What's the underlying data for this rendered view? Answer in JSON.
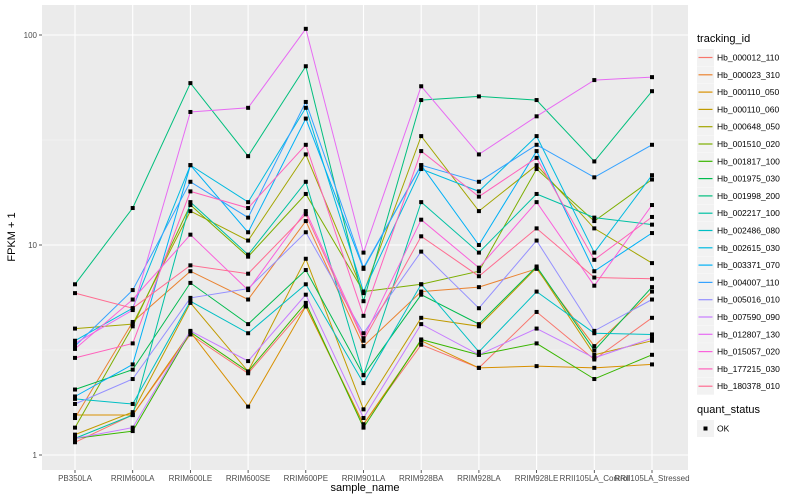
{
  "chart_data": {
    "type": "line",
    "title": "",
    "xlabel": "sample_name",
    "ylabel": "FPKM + 1",
    "yscale": "log10",
    "ylim": [
      0.9,
      130
    ],
    "yticks": [
      1,
      10,
      100
    ],
    "ytick_labels": [
      "1",
      "10",
      "100"
    ],
    "grid": true,
    "legend_position": "right",
    "categories": [
      "PB350LA",
      "RRIM600LA",
      "RRIM600LE",
      "RRIM600SE",
      "RRIM600PE",
      "RRIM901LA",
      "RRIM928BA",
      "RRIM928LA",
      "RRIM928LE",
      "RRII105LA_Control",
      "RRII105LA_Stressed"
    ],
    "color_legend_title": "tracking_id",
    "shape_legend_title": "quant_status",
    "shape_legend_items": [
      {
        "label": "OK",
        "marker": "square"
      }
    ],
    "series": [
      {
        "name": "Hb_000012_110",
        "color": "#F8766D",
        "values": [
          1.15,
          1.55,
          3.75,
          2.45,
          5.1,
          1.4,
          3.35,
          2.6,
          4.8,
          2.85,
          4.5
        ]
      },
      {
        "name": "Hb_000023_310",
        "color": "#EA8331",
        "values": [
          1.5,
          4.3,
          7.5,
          5.5,
          13.0,
          3.3,
          6.0,
          6.3,
          7.7,
          3.3,
          6.0
        ]
      },
      {
        "name": "Hb_000110_050",
        "color": "#D89000",
        "values": [
          1.55,
          1.55,
          3.85,
          1.7,
          5.1,
          1.4,
          3.5,
          2.6,
          2.65,
          2.6,
          2.7
        ]
      },
      {
        "name": "Hb_000110_060",
        "color": "#C09B00",
        "values": [
          1.25,
          1.6,
          5.3,
          2.5,
          8.6,
          1.65,
          4.5,
          4.1,
          7.8,
          3.0,
          3.5
        ]
      },
      {
        "name": "Hb_000648_050",
        "color": "#A3A500",
        "values": [
          4.0,
          4.2,
          14.5,
          10.5,
          27.0,
          5.9,
          33.0,
          14.5,
          24.0,
          12.0,
          8.2
        ]
      },
      {
        "name": "Hb_001510_020",
        "color": "#7CAE00",
        "values": [
          1.35,
          4.1,
          15.5,
          8.8,
          17.5,
          6.0,
          6.5,
          7.5,
          23.0,
          13.0,
          20.5
        ]
      },
      {
        "name": "Hb_001817_100",
        "color": "#39B600",
        "values": [
          1.2,
          1.3,
          3.85,
          2.5,
          5.3,
          1.35,
          3.55,
          3.0,
          3.4,
          2.3,
          3.0
        ]
      },
      {
        "name": "Hb_001975_030",
        "color": "#00BB4E",
        "values": [
          2.05,
          2.55,
          6.6,
          4.2,
          7.6,
          2.4,
          5.8,
          4.2,
          7.9,
          3.15,
          6.3
        ]
      },
      {
        "name": "Hb_001998_200",
        "color": "#00BF7D",
        "values": [
          6.5,
          15.0,
          59.0,
          26.5,
          71.0,
          5.4,
          49.0,
          51.0,
          49.0,
          25.0,
          54.0
        ]
      },
      {
        "name": "Hb_002217_100",
        "color": "#00C1A3",
        "values": [
          1.2,
          1.55,
          16.0,
          9.0,
          20.0,
          2.4,
          16.0,
          9.2,
          17.5,
          13.5,
          12.5
        ]
      },
      {
        "name": "Hb_002486_080",
        "color": "#00BFC4",
        "values": [
          1.85,
          1.75,
          5.4,
          3.8,
          6.5,
          2.2,
          6.5,
          3.1,
          6.0,
          3.8,
          3.75
        ]
      },
      {
        "name": "Hb_002615_030",
        "color": "#00BAE0",
        "values": [
          3.5,
          5.0,
          24.0,
          16.0,
          45.0,
          6.0,
          23.0,
          18.0,
          33.0,
          9.2,
          21.5
        ]
      },
      {
        "name": "Hb_003371_070",
        "color": "#00B0F6",
        "values": [
          1.9,
          2.7,
          24.0,
          11.5,
          40.0,
          7.7,
          24.0,
          10.0,
          28.0,
          7.5,
          11.4
        ]
      },
      {
        "name": "Hb_004007_110",
        "color": "#35A2FF",
        "values": [
          3.3,
          6.1,
          20.0,
          13.5,
          48.0,
          7.8,
          24.0,
          20.0,
          30.0,
          21.0,
          30.0
        ]
      },
      {
        "name": "Hb_005016_010",
        "color": "#9590FF",
        "values": [
          1.75,
          2.3,
          5.6,
          6.2,
          11.5,
          3.8,
          9.3,
          5.0,
          10.5,
          3.9,
          5.5
        ]
      },
      {
        "name": "Hb_007590_090",
        "color": "#C77CFF",
        "values": [
          1.2,
          1.35,
          3.9,
          2.8,
          5.8,
          1.5,
          4.2,
          3.0,
          4.0,
          2.9,
          3.6
        ]
      },
      {
        "name": "Hb_012807_130",
        "color": "#E76BF3",
        "values": [
          3.4,
          4.9,
          43.0,
          45.0,
          107.0,
          9.2,
          57.0,
          27.0,
          41.0,
          61.0,
          63.0
        ]
      },
      {
        "name": "Hb_015057_020",
        "color": "#FA62DB",
        "values": [
          3.2,
          5.5,
          11.2,
          6.1,
          14.5,
          3.6,
          13.2,
          7.8,
          16.0,
          6.4,
          15.5
        ]
      },
      {
        "name": "Hb_177215_030",
        "color": "#FF62BC",
        "values": [
          2.9,
          3.4,
          18.0,
          15.0,
          30.0,
          4.6,
          28.0,
          17.0,
          26.0,
          8.5,
          13.6
        ]
      },
      {
        "name": "Hb_180378_010",
        "color": "#FF6C91",
        "values": [
          5.9,
          5.0,
          8.0,
          7.3,
          14.0,
          3.5,
          11.0,
          7.1,
          12.0,
          7.0,
          6.9
        ]
      }
    ]
  }
}
